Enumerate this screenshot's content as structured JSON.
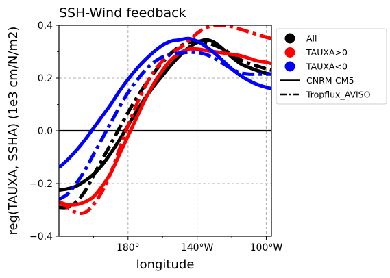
{
  "chart_data": {
    "type": "line",
    "title": "SSH-Wind feedback",
    "xlabel": "longitude",
    "ylabel": "reg(TAUXA, SSHA) (1e3 cm/N/m2)",
    "xlim": [
      140,
      263
    ],
    "ylim": [
      -0.4,
      0.4
    ],
    "grid": true,
    "legend_position": "outside-top-right",
    "x_ticks": [
      {
        "value": 180,
        "label": "180$^\\circ$"
      },
      {
        "value": 220,
        "label": "140$^\\circ$W"
      },
      {
        "value": 260,
        "label": "100$^\\circ$W"
      }
    ],
    "x_minor_ticks": [
      160,
      200,
      240
    ],
    "y_ticks": [
      {
        "value": -0.4,
        "label": "−0.4"
      },
      {
        "value": -0.2,
        "label": "−0.2"
      },
      {
        "value": 0.0,
        "label": "0.0"
      },
      {
        "value": 0.2,
        "label": "0.2"
      },
      {
        "value": 0.4,
        "label": "0.4"
      }
    ],
    "y_minor_ticks": [
      -0.3,
      -0.1,
      0.1,
      0.3
    ],
    "hline": 0.0,
    "colors": {
      "All": "#000000",
      "TAUXA>0": "#ff0000",
      "TAUXA<0": "#0000ff"
    },
    "series": [
      {
        "group": "All",
        "style": "solid",
        "x": [
          140,
          145,
          150,
          155,
          160,
          165,
          170,
          175,
          180,
          185,
          190,
          195,
          200,
          205,
          210,
          215,
          220,
          225,
          230,
          235,
          240,
          245,
          250,
          255,
          260,
          263
        ],
        "y": [
          -0.225,
          -0.22,
          -0.21,
          -0.19,
          -0.165,
          -0.13,
          -0.085,
          -0.035,
          0.02,
          0.075,
          0.125,
          0.17,
          0.21,
          0.25,
          0.285,
          0.315,
          0.335,
          0.345,
          0.335,
          0.31,
          0.28,
          0.255,
          0.24,
          0.228,
          0.218,
          0.215
        ]
      },
      {
        "group": "All",
        "style": "dashdot",
        "x": [
          140,
          145,
          150,
          155,
          160,
          165,
          170,
          175,
          180,
          185,
          190,
          195,
          200,
          205,
          210,
          215,
          220,
          225,
          230,
          235,
          240,
          245,
          250,
          255,
          260,
          263
        ],
        "y": [
          -0.29,
          -0.29,
          -0.27,
          -0.23,
          -0.17,
          -0.11,
          -0.05,
          0.01,
          0.07,
          0.125,
          0.175,
          0.22,
          0.26,
          0.295,
          0.32,
          0.335,
          0.34,
          0.335,
          0.325,
          0.31,
          0.29,
          0.27,
          0.255,
          0.245,
          0.235,
          0.23
        ]
      },
      {
        "group": "TAUXA>0",
        "style": "solid",
        "x": [
          140,
          145,
          150,
          155,
          160,
          165,
          170,
          175,
          180,
          185,
          190,
          195,
          200,
          205,
          210,
          215,
          220,
          225,
          230,
          235,
          240,
          245,
          250,
          255,
          260,
          263
        ],
        "y": [
          -0.27,
          -0.28,
          -0.28,
          -0.27,
          -0.25,
          -0.21,
          -0.16,
          -0.09,
          -0.02,
          0.05,
          0.12,
          0.18,
          0.23,
          0.27,
          0.295,
          0.31,
          0.31,
          0.305,
          0.3,
          0.295,
          0.29,
          0.285,
          0.275,
          0.265,
          0.26,
          0.255
        ]
      },
      {
        "group": "TAUXA>0",
        "style": "dashdot",
        "x": [
          140,
          145,
          150,
          155,
          160,
          165,
          170,
          175,
          180,
          185,
          190,
          195,
          200,
          205,
          210,
          215,
          220,
          225,
          230,
          235,
          240,
          245,
          250,
          255,
          260,
          263
        ],
        "y": [
          -0.27,
          -0.29,
          -0.31,
          -0.31,
          -0.28,
          -0.23,
          -0.16,
          -0.07,
          0.02,
          0.1,
          0.17,
          0.225,
          0.265,
          0.295,
          0.315,
          0.34,
          0.37,
          0.39,
          0.4,
          0.4,
          0.395,
          0.385,
          0.375,
          0.365,
          0.355,
          0.35
        ]
      },
      {
        "group": "TAUXA<0",
        "style": "solid",
        "x": [
          140,
          145,
          150,
          155,
          160,
          165,
          170,
          175,
          180,
          185,
          190,
          195,
          200,
          205,
          210,
          215,
          220,
          225,
          230,
          235,
          240,
          245,
          250,
          255,
          260,
          263
        ],
        "y": [
          -0.14,
          -0.11,
          -0.075,
          -0.035,
          0.01,
          0.055,
          0.1,
          0.15,
          0.195,
          0.235,
          0.27,
          0.3,
          0.325,
          0.34,
          0.345,
          0.35,
          0.34,
          0.32,
          0.295,
          0.265,
          0.235,
          0.21,
          0.19,
          0.175,
          0.165,
          0.16
        ]
      },
      {
        "group": "TAUXA<0",
        "style": "dashdot",
        "x": [
          140,
          145,
          150,
          155,
          160,
          165,
          170,
          175,
          180,
          185,
          190,
          195,
          200,
          205,
          210,
          215,
          220,
          225,
          230,
          235,
          240,
          245,
          250,
          255,
          260,
          263
        ],
        "y": [
          -0.26,
          -0.24,
          -0.2,
          -0.15,
          -0.09,
          -0.03,
          0.03,
          0.09,
          0.145,
          0.19,
          0.23,
          0.26,
          0.28,
          0.29,
          0.295,
          0.298,
          0.297,
          0.29,
          0.275,
          0.255,
          0.235,
          0.22,
          0.215,
          0.215,
          0.215,
          0.215
        ]
      }
    ],
    "legend": [
      {
        "label": "All",
        "marker": "circle",
        "color": "#000000"
      },
      {
        "label": "TAUXA>0",
        "marker": "circle",
        "color": "#ff0000"
      },
      {
        "label": "TAUXA<0",
        "marker": "circle",
        "color": "#0000ff"
      },
      {
        "label": "CNRM-CM5",
        "marker": "solid-line",
        "color": "#000000"
      },
      {
        "label": "Tropflux_AVISO",
        "marker": "dashdot-line",
        "color": "#000000"
      }
    ]
  }
}
